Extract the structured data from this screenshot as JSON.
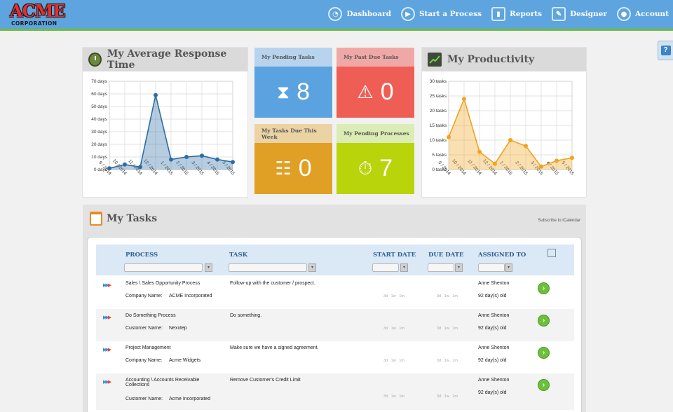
{
  "brand": {
    "name": "ACME",
    "sub": "CORPORATION"
  },
  "nav": [
    {
      "label": "Dashboard",
      "icon": "dashboard-icon"
    },
    {
      "label": "Start a Process",
      "icon": "play-icon"
    },
    {
      "label": "Reports",
      "icon": "bar-chart-icon"
    },
    {
      "label": "Designer",
      "icon": "designer-icon"
    },
    {
      "label": "Account",
      "icon": "users-icon"
    }
  ],
  "help": "?",
  "response_panel": {
    "title": "My Average Response Time"
  },
  "productivity_panel": {
    "title": "My Productivity"
  },
  "tiles": [
    {
      "label": "My Pending Tasks",
      "value": "8",
      "icon": "hourglass-icon",
      "head": "#b8d3ee",
      "body": "#5aa3e0"
    },
    {
      "label": "My Past Due Tasks",
      "value": "0",
      "icon": "warning-icon",
      "head": "#f0a8a6",
      "body": "#ee5e55"
    },
    {
      "label": "My Tasks Due This Week",
      "value": "0",
      "icon": "clipboard-icon",
      "head": "#ebd3a4",
      "body": "#e0a025"
    },
    {
      "label": "My Pending Processes",
      "value": "7",
      "icon": "stopwatch-icon",
      "head": "#dcecb5",
      "body": "#b9d40a"
    }
  ],
  "chart_data": [
    {
      "type": "area",
      "title": "My Average Response Time",
      "categories": [
        "9 / 2014",
        "10 / 2014",
        "11 / 2014",
        "12 / 2014",
        "1 / 2015",
        "2 / 2015",
        "3 / 2015",
        "4 / 2015",
        "5 / 2015"
      ],
      "series": [
        {
          "values": [
            1,
            4,
            2,
            59,
            8,
            10,
            11,
            8,
            6
          ]
        }
      ],
      "yticks": [
        "0 days",
        "10 days",
        "20 days",
        "30 days",
        "40 days",
        "50 days",
        "60 days",
        "70 days"
      ],
      "ylim": [
        0,
        70
      ],
      "grid": true,
      "color": "#2e6da4"
    },
    {
      "type": "area",
      "title": "My Productivity",
      "categories": [
        "9 / 2014",
        "10 / 2014",
        "11 / 2014",
        "12 / 2014",
        "1 / 2015",
        "2 / 2015",
        "3 / 2015",
        "4 / 2015",
        "5 / 2015"
      ],
      "series": [
        {
          "values": [
            11,
            24,
            6,
            2,
            10,
            8,
            1,
            3,
            4
          ]
        }
      ],
      "yticks": [
        "0 tasks",
        "5 tasks",
        "10 tasks",
        "15 tasks",
        "20 tasks",
        "25 tasks",
        "30 tasks"
      ],
      "ylim": [
        0,
        30
      ],
      "grid": true,
      "color": "#f0a31e"
    }
  ],
  "tasks": {
    "title": "My Tasks",
    "subscribe": "Subscribe to iCalendar",
    "columns": [
      "PROCESS",
      "TASK",
      "START DATE",
      "DUE DATE",
      "ASSIGNED TO"
    ],
    "durations": [
      "3d",
      "1w",
      "1m"
    ],
    "rows": [
      {
        "process": "Sales \\ Sales Opportunity Process",
        "company_label": "Company Name:",
        "company": "ACME Incorporated",
        "task": "Follow-up with the customer / prospect.",
        "assigned": "Anne Shenton",
        "age": "92 day(s) old"
      },
      {
        "process": "Do Something Process",
        "company_label": "Customer Name:",
        "company": "Nexxtep",
        "task": "Do something.",
        "assigned": "Anne Shenton",
        "age": "92 day(s) old"
      },
      {
        "process": "Project Management",
        "company_label": "Company Name:",
        "company": "Acme Widgets",
        "task": "Make sure we have a signed agreement.",
        "assigned": "Anne Shenton",
        "age": "92 day(s) old"
      },
      {
        "process": "Accounting \\ Accounts Receivable Collections",
        "company_label": "Customer Name:",
        "company": "Acme Incorporated",
        "task": "Remove Customer's Credit Limit",
        "assigned": "Anne Shenton",
        "age": "92 day(s) old"
      }
    ]
  }
}
